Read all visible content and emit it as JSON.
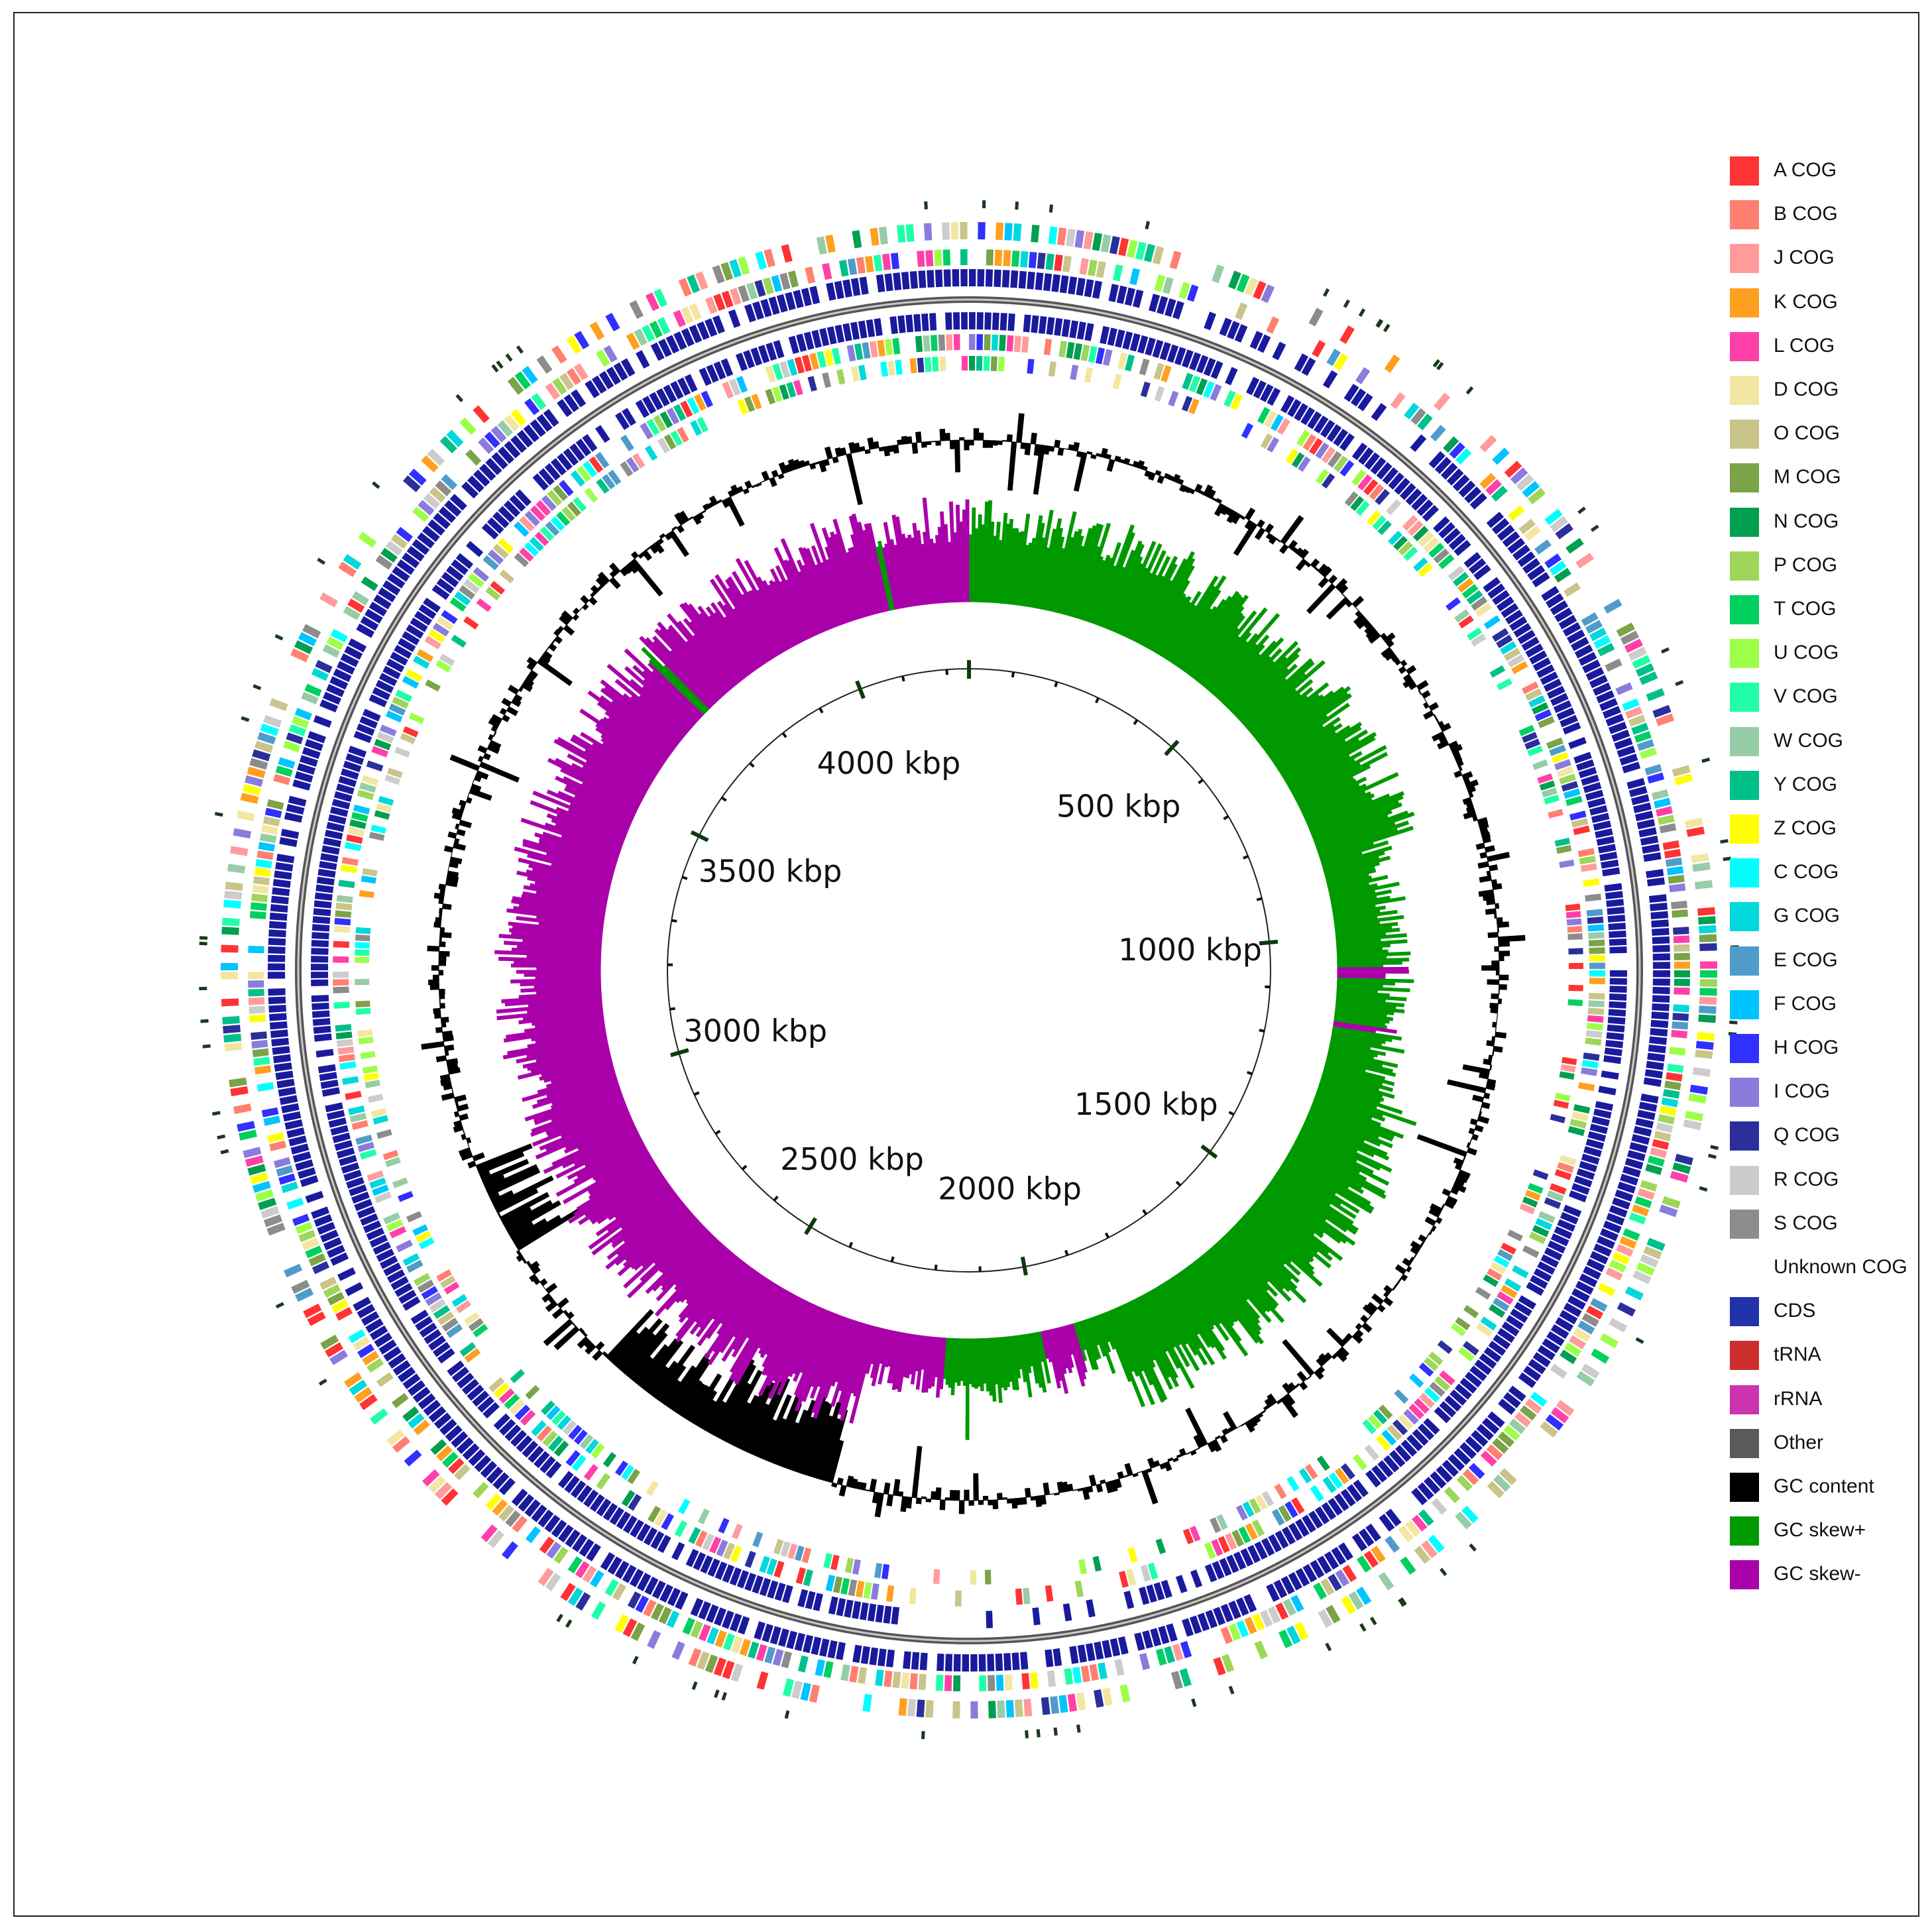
{
  "figure": {
    "description_label": "Circular genome map",
    "scale_labels": [
      "500 kbp",
      "1000 kbp",
      "1500 kbp",
      "2000 kbp",
      "2500 kbp",
      "3000 kbp",
      "3500 kbp",
      "4000 kbp"
    ],
    "genome_length_kbp": 4250,
    "major_tick_interval_kbp": 500,
    "minor_tick_interval_kbp": 100
  },
  "colors": {
    "gc_content": "#000000",
    "gc_skew_pos": "#009900",
    "gc_skew_neg": "#aa00aa",
    "cds": "#1a1a9e",
    "backbone": "#555555"
  },
  "legend": {
    "items": [
      {
        "label": "A COG",
        "color": "#ff3333"
      },
      {
        "label": "B COG",
        "color": "#ff8070"
      },
      {
        "label": "J COG",
        "color": "#ff9b9b"
      },
      {
        "label": "K COG",
        "color": "#ffa020"
      },
      {
        "label": "L COG",
        "color": "#ff40a8"
      },
      {
        "label": "D COG",
        "color": "#f2e6a0"
      },
      {
        "label": "O COG",
        "color": "#c9c48a"
      },
      {
        "label": "M COG",
        "color": "#7ba348"
      },
      {
        "label": "N COG",
        "color": "#00a050"
      },
      {
        "label": "P COG",
        "color": "#9dd65a"
      },
      {
        "label": "T COG",
        "color": "#00d060"
      },
      {
        "label": "U COG",
        "color": "#9cff48"
      },
      {
        "label": "V COG",
        "color": "#20ffa8"
      },
      {
        "label": "W COG",
        "color": "#96cca6"
      },
      {
        "label": "Y COG",
        "color": "#00c08a"
      },
      {
        "label": "Z COG",
        "color": "#ffff00"
      },
      {
        "label": "C COG",
        "color": "#00ffff"
      },
      {
        "label": "G COG",
        "color": "#00d8dc"
      },
      {
        "label": "E COG",
        "color": "#4f9ccb"
      },
      {
        "label": "F COG",
        "color": "#00c4ff"
      },
      {
        "label": "H COG",
        "color": "#3030ff"
      },
      {
        "label": "I COG",
        "color": "#8a7cdc"
      },
      {
        "label": "Q COG",
        "color": "#2a2f9c"
      },
      {
        "label": "R COG",
        "color": "#cccccc"
      },
      {
        "label": "S COG",
        "color": "#8c8c8c"
      },
      {
        "label": "Unknown COG",
        "color": "#ffffff"
      },
      {
        "label": "CDS",
        "color": "#2233aa"
      },
      {
        "label": "tRNA",
        "color": "#cc2e2e"
      },
      {
        "label": "rRNA",
        "color": "#cc33b0"
      },
      {
        "label": "Other",
        "color": "#5a5a5a"
      },
      {
        "label": "GC content",
        "color": "#000000"
      },
      {
        "label": "GC skew+",
        "color": "#009900"
      },
      {
        "label": "GC skew-",
        "color": "#aa00aa"
      }
    ]
  }
}
